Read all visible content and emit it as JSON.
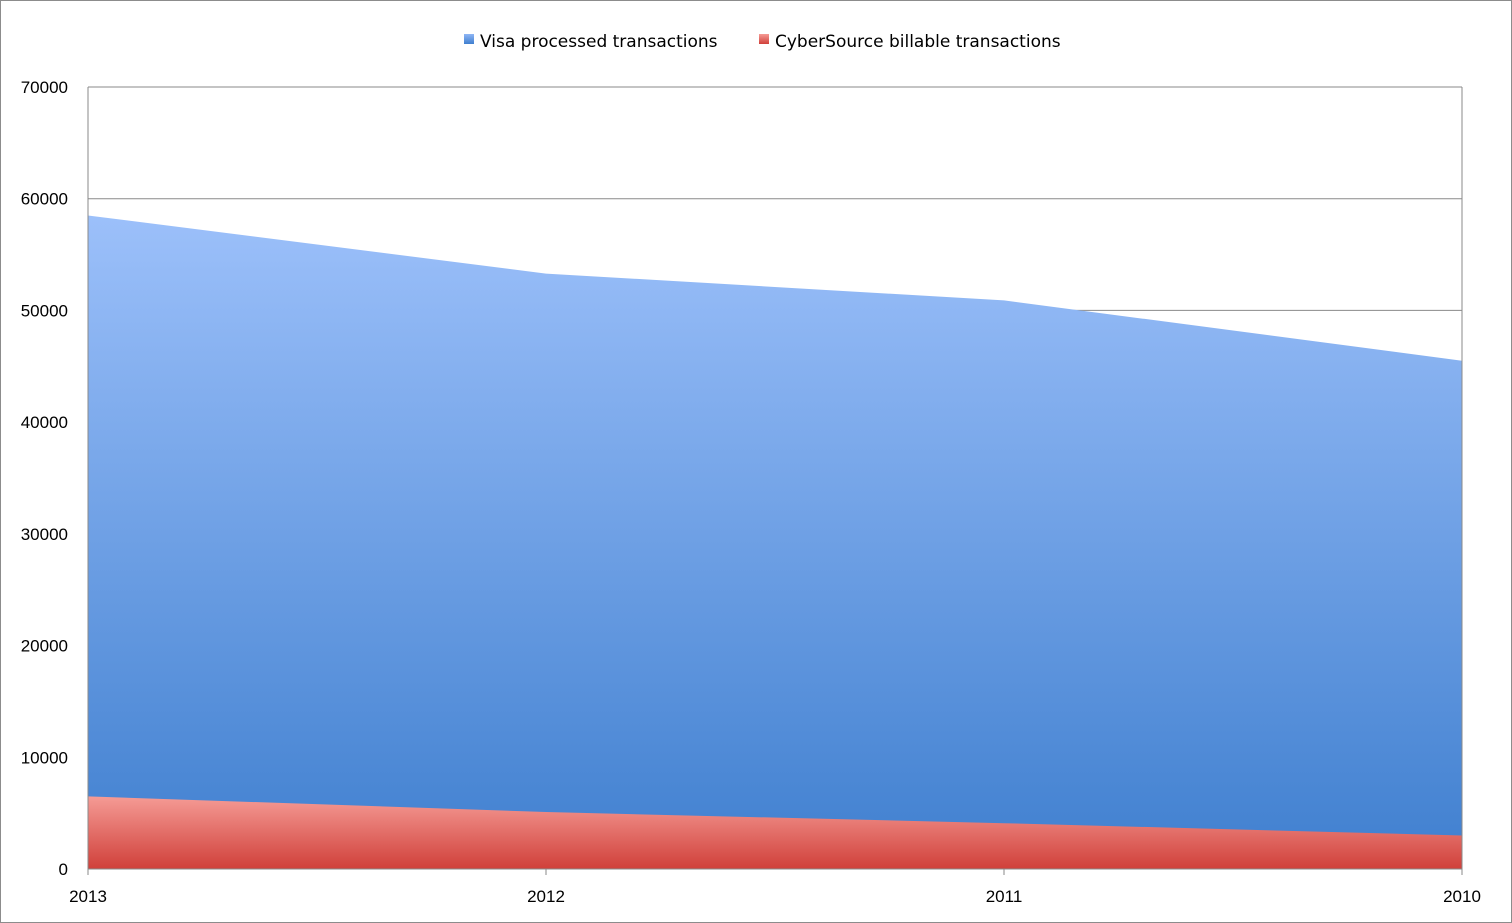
{
  "chart_data": {
    "type": "area",
    "categories": [
      "2013",
      "2012",
      "2011",
      "2010"
    ],
    "series": [
      {
        "name": "Visa processed transactions",
        "values": [
          58500,
          53300,
          50900,
          45500
        ],
        "color": "#4a86d6"
      },
      {
        "name": "CyberSource billable transactions",
        "values": [
          6500,
          5100,
          4100,
          3000
        ],
        "color": "#e0514a"
      }
    ],
    "ylim": [
      0,
      70000
    ],
    "yticks": [
      "0",
      "10000",
      "20000",
      "30000",
      "40000",
      "50000",
      "60000",
      "70000"
    ],
    "grid": true,
    "legend": "top-center",
    "xlabel": "",
    "ylabel": "",
    "title": ""
  }
}
